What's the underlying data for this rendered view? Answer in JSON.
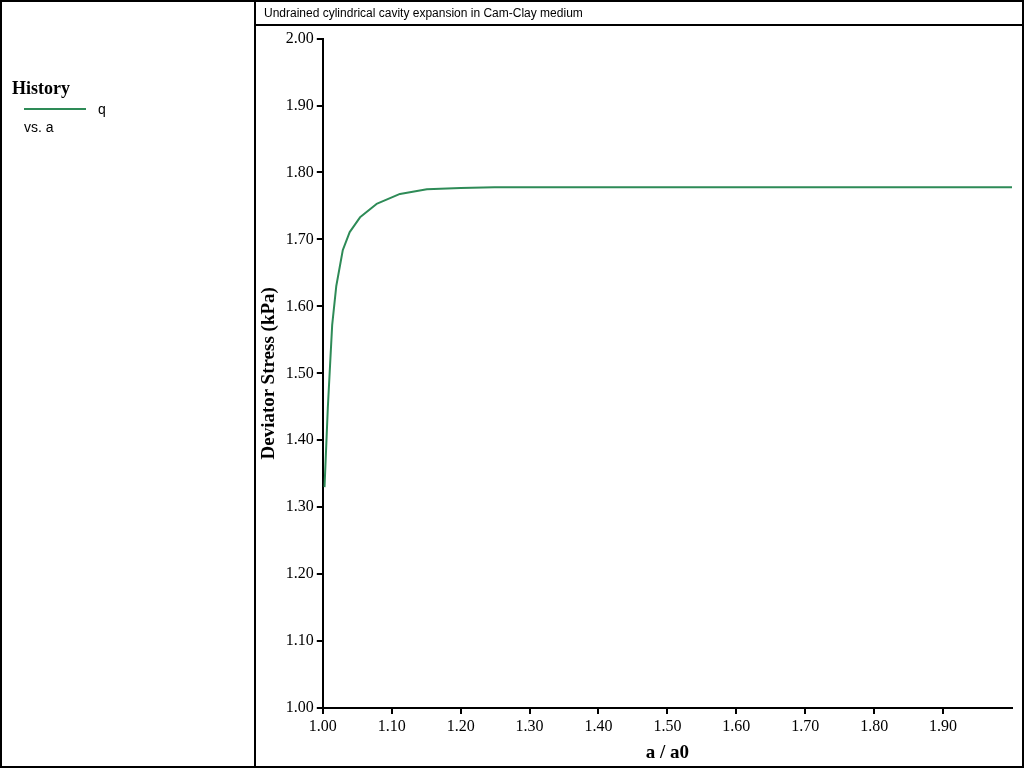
{
  "chart_data": {
    "type": "line",
    "title": "Undrained cylindrical cavity expansion in Cam-Clay medium",
    "xlabel": "a / a0",
    "ylabel": "Deviator Stress (kPa)",
    "legend_title": "History",
    "legend": "left",
    "annotations": [
      "vs. a"
    ],
    "grid": false,
    "xlim": [
      1.0,
      2.0
    ],
    "ylim": [
      1.0,
      2.0
    ],
    "xticks": [
      {
        "value": 1.0,
        "label": "1.00"
      },
      {
        "value": 1.1,
        "label": "1.10"
      },
      {
        "value": 1.2,
        "label": "1.20"
      },
      {
        "value": 1.3,
        "label": "1.30"
      },
      {
        "value": 1.4,
        "label": "1.40"
      },
      {
        "value": 1.5,
        "label": "1.50"
      },
      {
        "value": 1.6,
        "label": "1.60"
      },
      {
        "value": 1.7,
        "label": "1.70"
      },
      {
        "value": 1.8,
        "label": "1.80"
      },
      {
        "value": 1.9,
        "label": "1.90"
      }
    ],
    "yticks": [
      {
        "value": 1.0,
        "label": "1.00"
      },
      {
        "value": 1.1,
        "label": "1.10"
      },
      {
        "value": 1.2,
        "label": "1.20"
      },
      {
        "value": 1.3,
        "label": "1.30"
      },
      {
        "value": 1.4,
        "label": "1.40"
      },
      {
        "value": 1.5,
        "label": "1.50"
      },
      {
        "value": 1.6,
        "label": "1.60"
      },
      {
        "value": 1.7,
        "label": "1.70"
      },
      {
        "value": 1.8,
        "label": "1.80"
      },
      {
        "value": 1.9,
        "label": "1.90"
      },
      {
        "value": 2.0,
        "label": "2.00"
      }
    ],
    "series": [
      {
        "name": "q",
        "color": "#2e8b57",
        "x": [
          1.0025,
          1.0073,
          1.0136,
          1.0195,
          1.029,
          1.039,
          1.054,
          1.078,
          1.112,
          1.151,
          1.2,
          1.249,
          1.35,
          1.5,
          1.7,
          2.0
        ],
        "values": [
          1.33,
          1.449,
          1.572,
          1.63,
          1.684,
          1.711,
          1.733,
          1.753,
          1.768,
          1.775,
          1.777,
          1.778,
          1.778,
          1.778,
          1.778,
          1.778
        ]
      }
    ]
  }
}
